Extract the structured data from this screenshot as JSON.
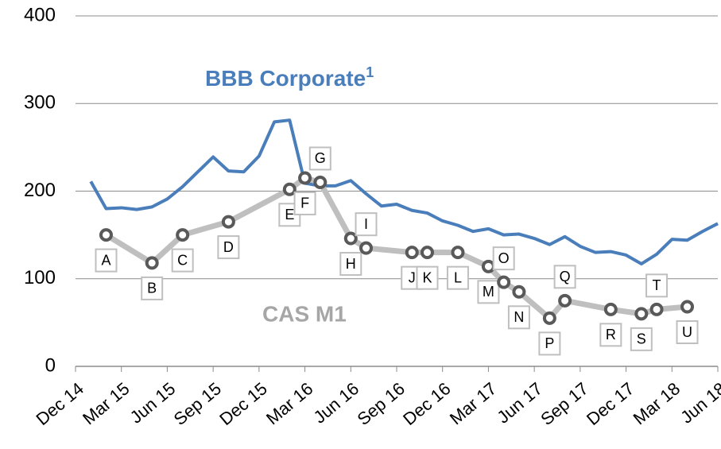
{
  "chart_data": {
    "type": "line",
    "xlim": [
      "2014-12",
      "2018-06"
    ],
    "xticks": [
      {
        "value": "2014-12",
        "label": "Dec 14"
      },
      {
        "value": "2015-03",
        "label": "Mar 15"
      },
      {
        "value": "2015-06",
        "label": "Jun 15"
      },
      {
        "value": "2015-09",
        "label": "Sep 15"
      },
      {
        "value": "2015-12",
        "label": "Dec 15"
      },
      {
        "value": "2016-03",
        "label": "Mar 16"
      },
      {
        "value": "2016-06",
        "label": "Jun 16"
      },
      {
        "value": "2016-09",
        "label": "Sep 16"
      },
      {
        "value": "2016-12",
        "label": "Dec 16"
      },
      {
        "value": "2017-03",
        "label": "Mar 17"
      },
      {
        "value": "2017-06",
        "label": "Jun 17"
      },
      {
        "value": "2017-09",
        "label": "Sep 17"
      },
      {
        "value": "2017-12",
        "label": "Dec 17"
      },
      {
        "value": "2018-03",
        "label": "Mar 18"
      },
      {
        "value": "2018-06",
        "label": "Jun 18"
      }
    ],
    "ylim": [
      0,
      400
    ],
    "yticks": [
      0,
      100,
      200,
      300,
      400
    ],
    "grid": true,
    "series": [
      {
        "name": "BBB Corporate",
        "footnote": "1",
        "color": "#4a7ebb",
        "x": [
          "2015-01",
          "2015-02",
          "2015-03",
          "2015-04",
          "2015-05",
          "2015-06",
          "2015-07",
          "2015-08",
          "2015-09",
          "2015-10",
          "2015-11",
          "2015-12",
          "2016-01",
          "2016-02",
          "2016-03",
          "2016-04",
          "2016-05",
          "2016-06",
          "2016-07",
          "2016-08",
          "2016-09",
          "2016-10",
          "2016-11",
          "2016-12",
          "2017-01",
          "2017-02",
          "2017-03",
          "2017-04",
          "2017-05",
          "2017-06",
          "2017-07",
          "2017-08",
          "2017-09",
          "2017-10",
          "2017-11",
          "2017-12",
          "2018-01",
          "2018-02",
          "2018-03",
          "2018-04",
          "2018-05",
          "2018-06"
        ],
        "values": [
          211,
          180,
          181,
          179,
          182,
          191,
          205,
          222,
          239,
          223,
          222,
          240,
          279,
          281,
          209,
          206,
          206,
          212,
          197,
          183,
          185,
          178,
          175,
          166,
          161,
          154,
          157,
          150,
          151,
          146,
          139,
          148,
          137,
          130,
          131,
          127,
          117,
          128,
          145,
          144,
          154,
          163
        ]
      },
      {
        "name": "CAS M1",
        "color": "#bfbfbf",
        "marker_color": "#595959",
        "x": [
          "2015-02",
          "2015-05",
          "2015-07",
          "2015-10",
          "2016-02",
          "2016-03",
          "2016-04",
          "2016-06",
          "2016-07",
          "2016-10",
          "2016-11",
          "2017-01",
          "2017-03",
          "2017-04",
          "2017-05",
          "2017-07",
          "2017-08",
          "2017-11",
          "2018-01",
          "2018-02",
          "2018-04"
        ],
        "values": [
          150,
          118,
          150,
          165,
          202,
          215,
          210,
          146,
          135,
          130,
          130,
          130,
          114,
          96,
          85,
          55,
          75,
          65,
          60,
          65,
          68
        ],
        "point_labels": [
          "A",
          "B",
          "C",
          "D",
          "E",
          "F",
          "G",
          "H",
          "I",
          "J",
          "K",
          "L",
          "M",
          "O",
          "N",
          "P",
          "Q",
          "R",
          "S",
          "T",
          "U"
        ]
      }
    ]
  }
}
